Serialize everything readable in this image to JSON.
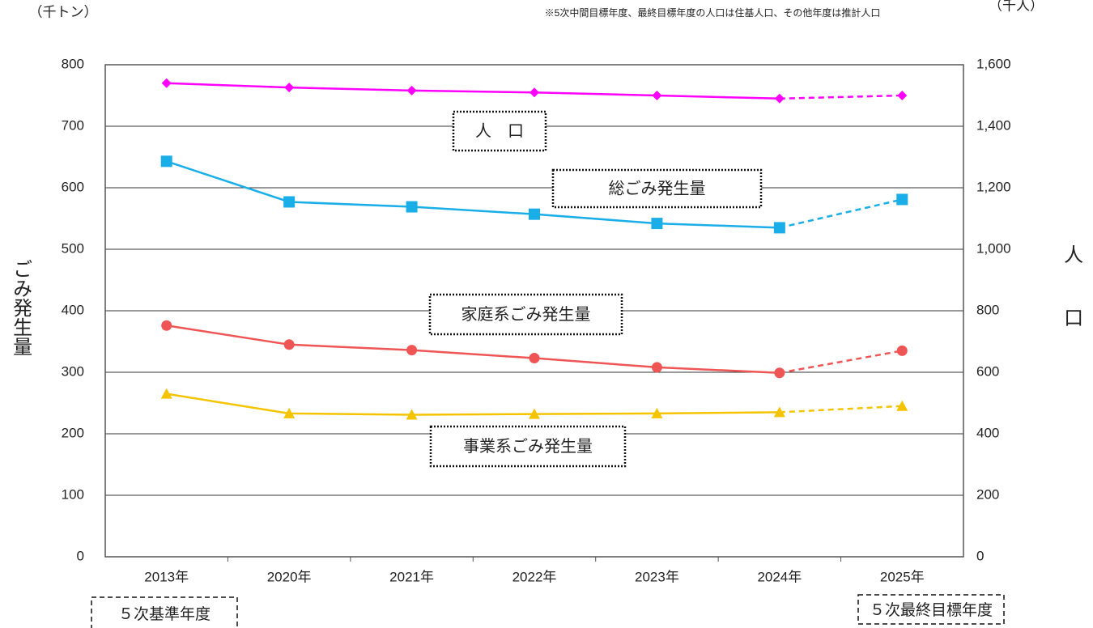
{
  "chart_data": {
    "type": "line",
    "left_unit": "（千トン）",
    "right_unit": "（千人）",
    "note": "※5次中間目標年度、最終目標年度の人口は住基人口、その他年度は推計人口",
    "ylabel": "ごみ発生量",
    "y2label": "人口",
    "categories": [
      "2013年",
      "2020年",
      "2021年",
      "2022年",
      "2023年",
      "2024年",
      "2025年"
    ],
    "series": [
      {
        "name": "人　口",
        "color": "#ff00ff",
        "marker": "diamond",
        "axis": "y2",
        "values": [
          1540,
          1526,
          1516,
          1510,
          1500,
          1490,
          1500
        ]
      },
      {
        "name": "総ごみ発生量",
        "color": "#1aaee8",
        "marker": "square",
        "values": [
          643,
          577,
          569,
          557,
          542,
          535,
          581
        ]
      },
      {
        "name": "家庭系ごみ発生量",
        "color": "#f05555",
        "marker": "circle",
        "values": [
          376,
          345,
          336,
          323,
          308,
          299,
          335
        ]
      },
      {
        "name": "事業系ごみ発生量",
        "color": "#f5c400",
        "marker": "triangle",
        "values": [
          265,
          233,
          231,
          232,
          233,
          235,
          245
        ]
      }
    ],
    "dashed_last_segment": true,
    "ylim": [
      0,
      800
    ],
    "yticks": [
      0,
      100,
      200,
      300,
      400,
      500,
      600,
      700,
      800
    ],
    "y2lim": [
      0,
      1600
    ],
    "y2ticks": [
      0,
      200,
      400,
      600,
      800,
      {
        "value": 1000,
        "label": "1,000"
      },
      {
        "value": 1200,
        "label": "1,200"
      },
      {
        "value": 1400,
        "label": "1,400"
      },
      {
        "value": 1600,
        "label": "1,600"
      }
    ],
    "grid": true,
    "annotations": [
      "５次基準年度",
      "５次最終目標年度"
    ]
  }
}
